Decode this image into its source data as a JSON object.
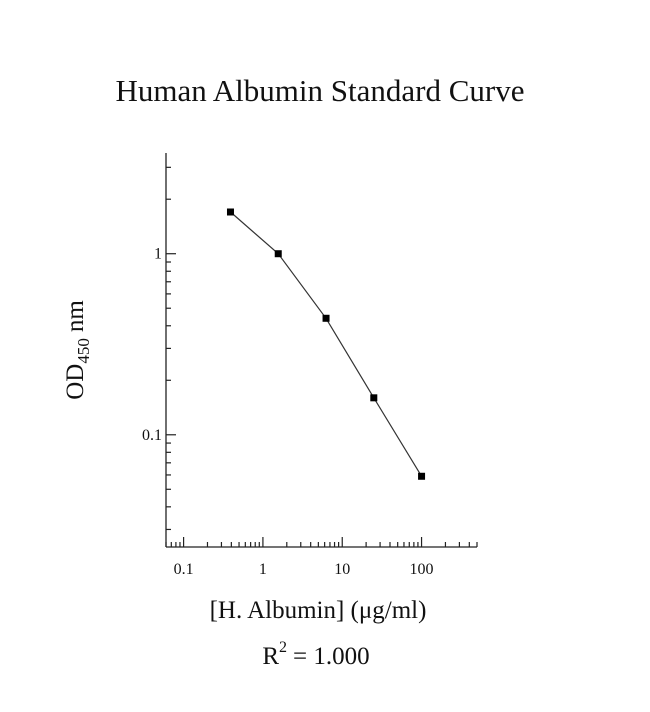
{
  "chart_data": {
    "type": "line",
    "title": "Human Albumin Standard Curve",
    "xlabel": "[H. Albumin] (μg/ml)",
    "ylabel_main": "OD",
    "ylabel_sub": "450",
    "ylabel_unit": "nm",
    "annotation_base": "R",
    "annotation_sup": "2",
    "annotation_rest": "= 1.000",
    "x_scale": "log",
    "y_scale": "log",
    "xlim": [
      0.06,
      500
    ],
    "ylim": [
      0.024,
      3.6
    ],
    "x_ticks": [
      {
        "value": 0.1,
        "label": "0.1"
      },
      {
        "value": 1,
        "label": "1"
      },
      {
        "value": 10,
        "label": "10"
      },
      {
        "value": 100,
        "label": "100"
      }
    ],
    "y_ticks": [
      {
        "value": 0.1,
        "label": "0.1"
      },
      {
        "value": 1,
        "label": "1"
      }
    ],
    "grid": false,
    "series": [
      {
        "x": [
          0.39,
          1.56,
          6.25,
          25,
          100
        ],
        "y": [
          1.7,
          1.0,
          0.44,
          0.16,
          0.059
        ]
      }
    ]
  }
}
